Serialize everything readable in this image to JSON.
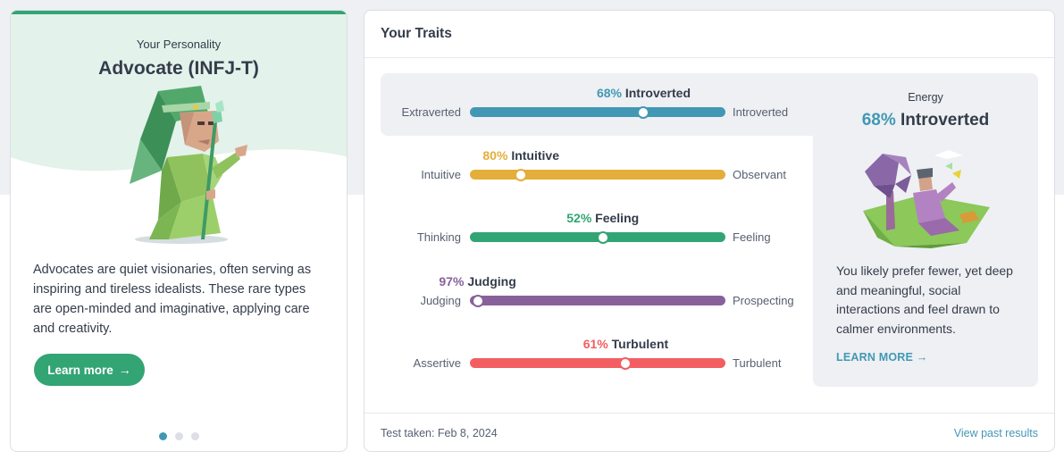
{
  "personality": {
    "subtitle": "Your Personality",
    "title": "Advocate (INFJ-T)",
    "description": "Advocates are quiet visionaries, often serving as inspiring and tireless idealists. These rare types are open-minded and imaginative, applying care and creativity.",
    "learn_more_label": "Learn more",
    "carousel": {
      "count": 3,
      "active_index": 0
    }
  },
  "traits": {
    "title": "Your Traits",
    "rows": [
      {
        "percent": 68,
        "percent_label": "68%",
        "result": "Introverted",
        "left": "Extraverted",
        "right": "Introverted",
        "color": "#4298b4",
        "knob_toward": "right",
        "highlighted": true
      },
      {
        "percent": 80,
        "percent_label": "80%",
        "result": "Intuitive",
        "left": "Intuitive",
        "right": "Observant",
        "color": "#e4ae3a",
        "knob_toward": "left",
        "highlighted": false
      },
      {
        "percent": 52,
        "percent_label": "52%",
        "result": "Feeling",
        "left": "Thinking",
        "right": "Feeling",
        "color": "#33a474",
        "knob_toward": "right",
        "highlighted": false
      },
      {
        "percent": 97,
        "percent_label": "97%",
        "result": "Judging",
        "left": "Judging",
        "right": "Prospecting",
        "color": "#88619a",
        "knob_toward": "left",
        "highlighted": false
      },
      {
        "percent": 61,
        "percent_label": "61%",
        "result": "Turbulent",
        "left": "Assertive",
        "right": "Turbulent",
        "color": "#f25e62",
        "knob_toward": "right",
        "highlighted": false
      }
    ],
    "detail": {
      "category": "Energy",
      "percent_label": "68%",
      "result": "Introverted",
      "description": "You likely prefer fewer, yet deep and meaningful, social interactions and feel drawn to calmer environments.",
      "learn_more_label": "LEARN MORE"
    },
    "footer": {
      "test_date": "Test taken: Feb 8, 2024",
      "past_results_label": "View past results"
    }
  }
}
